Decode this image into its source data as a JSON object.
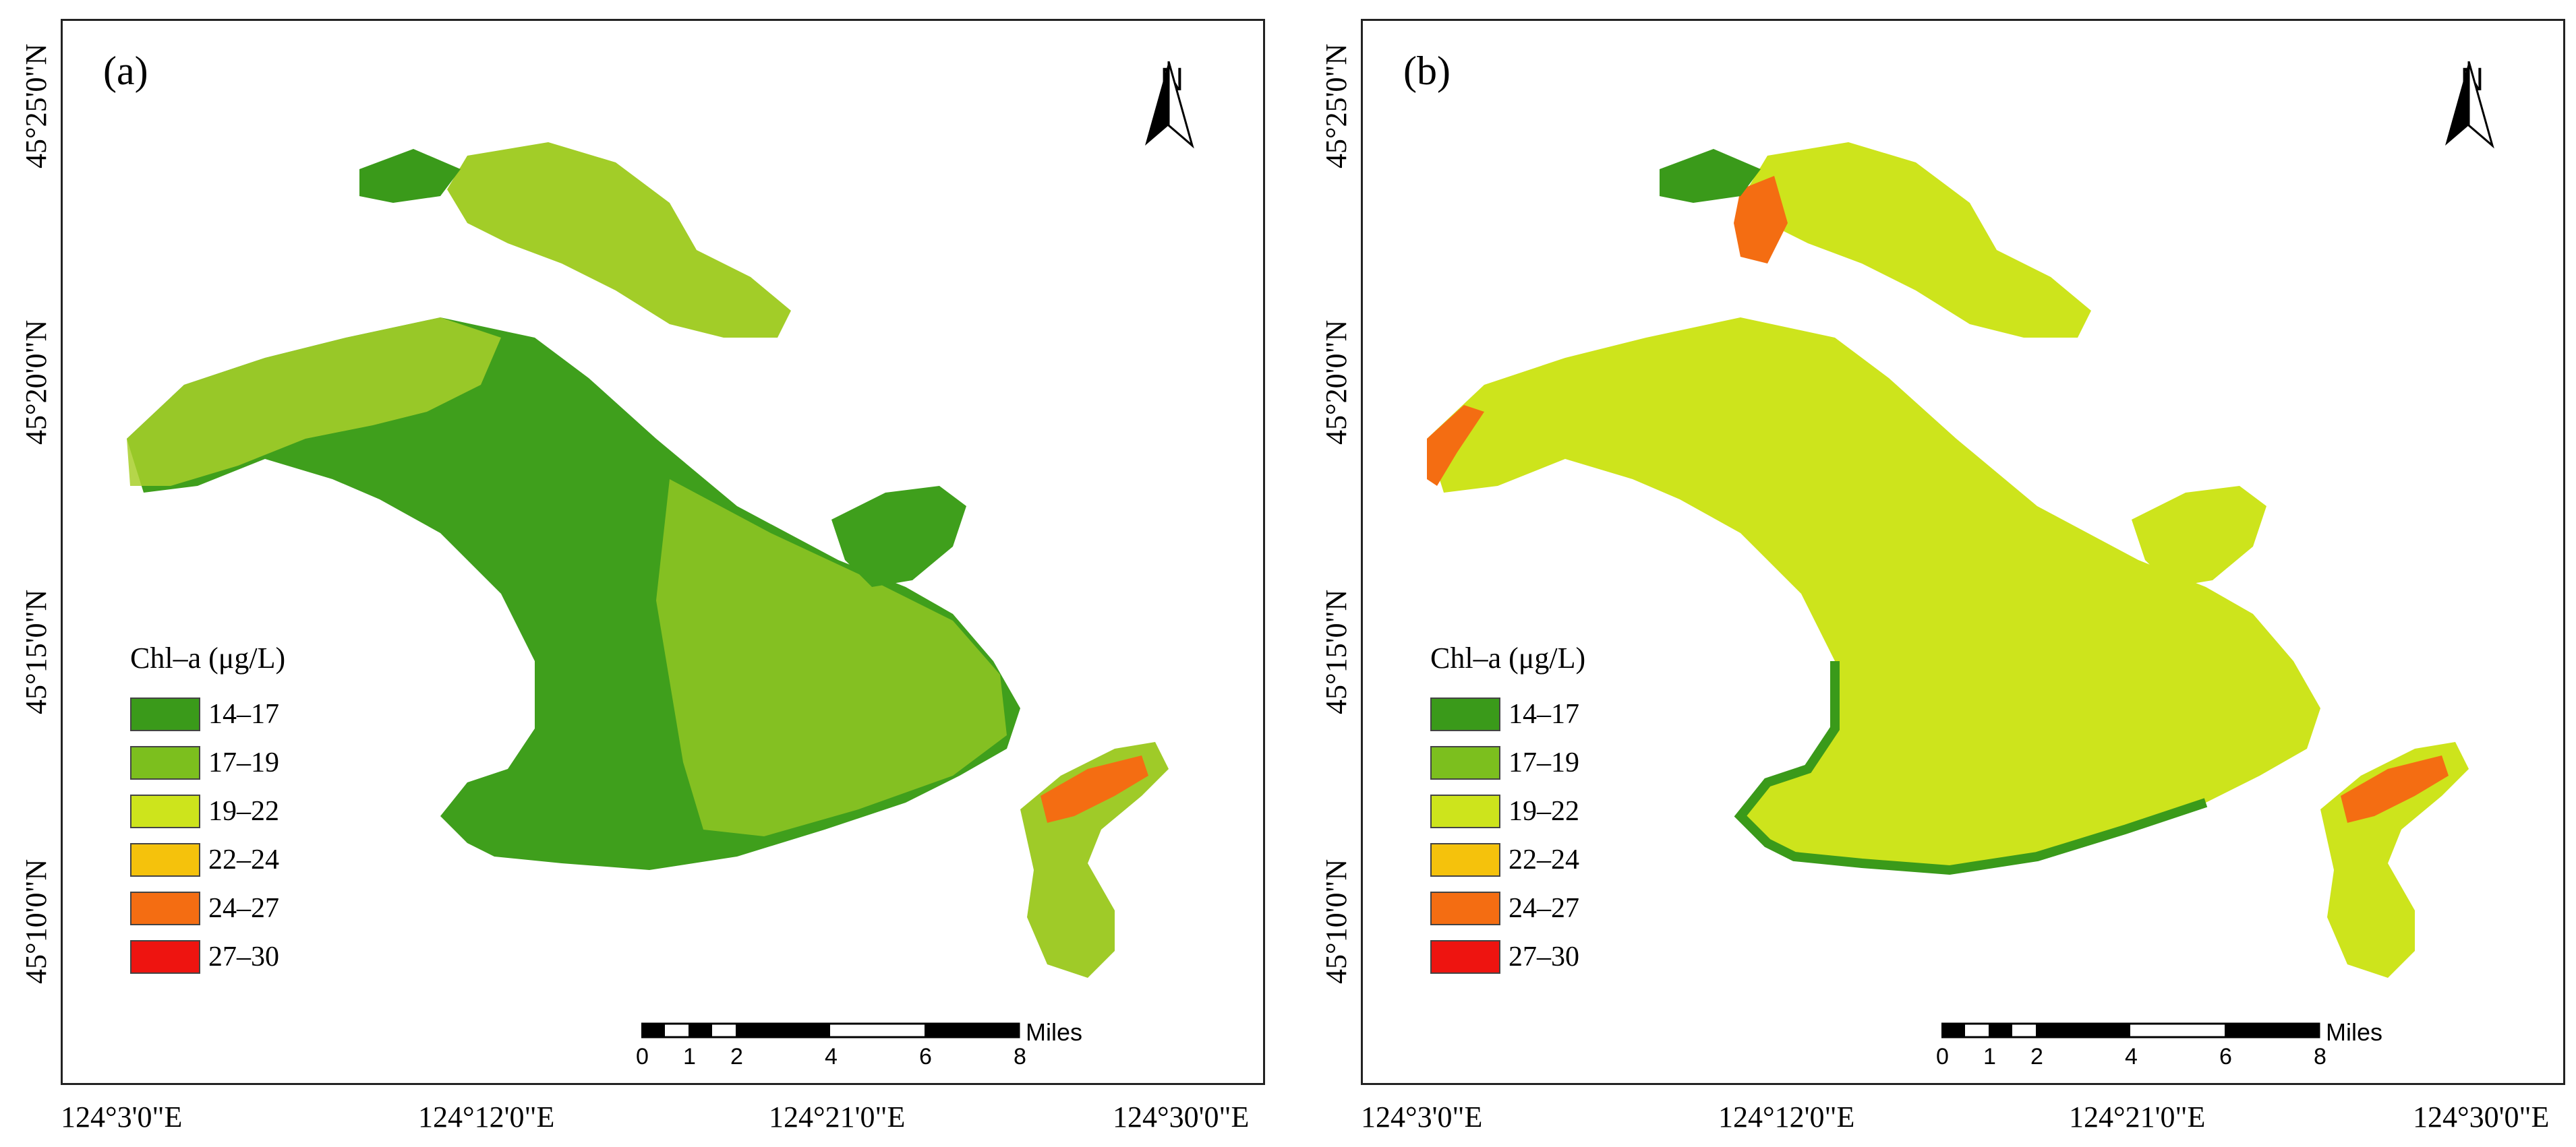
{
  "figure": {
    "panels": [
      {
        "label": "(a)",
        "legend_title": "Chl–a (μg/L)",
        "north_label": "N",
        "scale_label": "Miles",
        "scale_ticks": [
          "0",
          "1",
          "2",
          "4",
          "6",
          "8"
        ]
      },
      {
        "label": "(b)",
        "legend_title": "Chl–a (μg/L)",
        "north_label": "N",
        "scale_label": "Miles",
        "scale_ticks": [
          "0",
          "1",
          "2",
          "4",
          "6",
          "8"
        ]
      }
    ],
    "legend_classes": [
      {
        "label": "14–17",
        "color": "#3a9a1a"
      },
      {
        "label": "17–19",
        "color": "#7cbf1e"
      },
      {
        "label": "19–22",
        "color": "#cde41c"
      },
      {
        "label": "22–24",
        "color": "#f5c20c"
      },
      {
        "label": "24–27",
        "color": "#f46d12"
      },
      {
        "label": "27–30",
        "color": "#ee1410"
      }
    ],
    "lat_ticks": [
      "45°25'0\"N",
      "45°20'0\"N",
      "45°15'0\"N",
      "45°10'0\"N"
    ],
    "lon_ticks": [
      "124°3'0\"E",
      "124°12'0\"E",
      "124°21'0\"E",
      "124°30'0\"E"
    ]
  }
}
